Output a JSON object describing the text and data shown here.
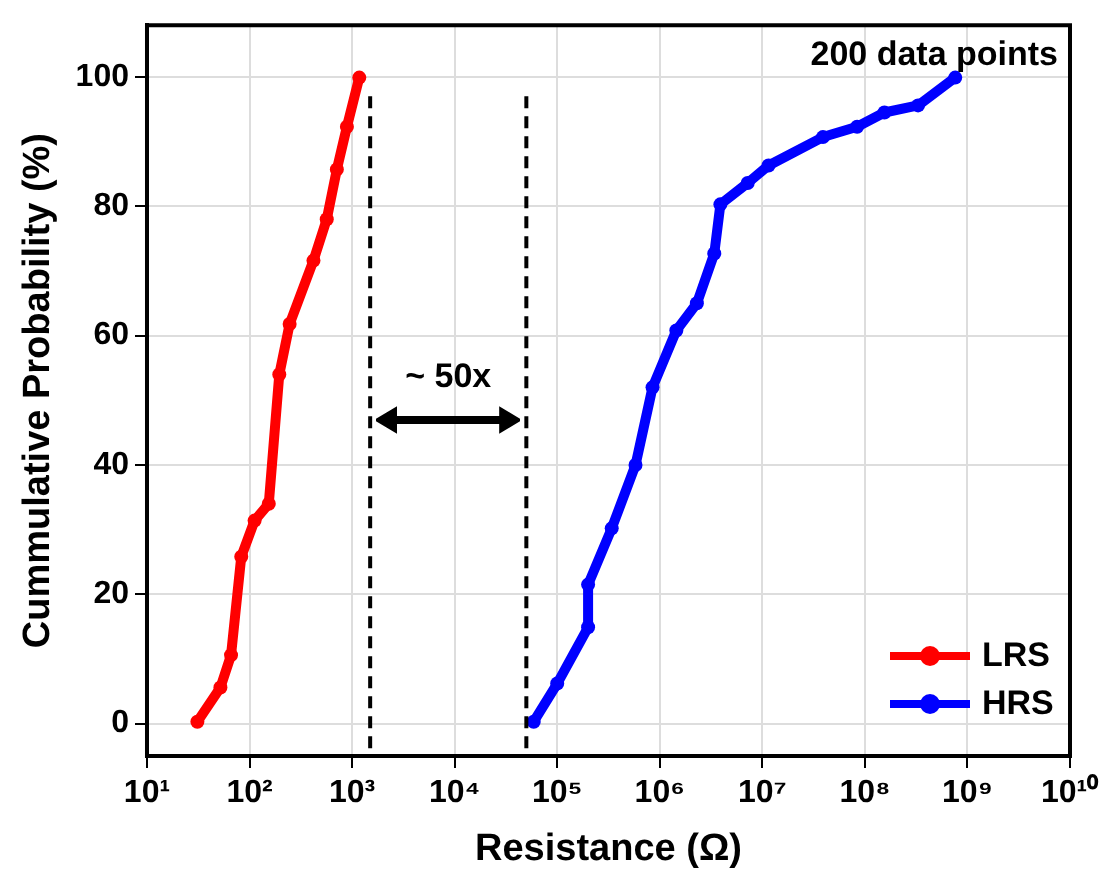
{
  "chart_data": {
    "type": "line",
    "xlabel": "Resistance (Ω)",
    "ylabel": "Cummulative Probability (%)",
    "log": "x",
    "xlim": [
      10,
      10000000000
    ],
    "ylim": [
      -5,
      108
    ],
    "xticks": [
      {
        "value": 10,
        "label": "10¹"
      },
      {
        "value": 100,
        "label": "10²"
      },
      {
        "value": 1000,
        "label": "10³"
      },
      {
        "value": 10000,
        "label": "10⁴"
      },
      {
        "value": 100000,
        "label": "10⁵"
      },
      {
        "value": 1000000,
        "label": "10⁶"
      },
      {
        "value": 10000000,
        "label": "10⁷"
      },
      {
        "value": 100000000,
        "label": "10⁸"
      },
      {
        "value": 1000000000,
        "label": "10⁹"
      },
      {
        "value": 10000000000,
        "label": "10¹⁰"
      }
    ],
    "yticks": [
      0,
      20,
      40,
      60,
      80,
      100
    ],
    "grid": true,
    "legend": "bottom right",
    "marker": "circle",
    "line_style": "solid",
    "series": [
      {
        "name": "LRS",
        "color": "#ff0000",
        "x": [
          31,
          52,
          66,
          83,
          112,
          154,
          195,
          246,
          420,
          566,
          710,
          890,
          1175
        ],
        "values": [
          0.3,
          5.6,
          10.6,
          25.8,
          31.4,
          34,
          54,
          61.8,
          71.6,
          78,
          85.7,
          92.3,
          99.9
        ]
      },
      {
        "name": "HRS",
        "color": "#0000ff",
        "x": [
          59000,
          100000,
          200000,
          200000,
          340000,
          580000,
          850000,
          1450000,
          2300000,
          3400000,
          3900000,
          7200000,
          11500000,
          39000000,
          84000000,
          155000000,
          330000000,
          760000000
        ],
        "values": [
          0.3,
          6.2,
          14.9,
          21.5,
          30.2,
          40,
          52,
          60.8,
          65,
          72.7,
          80.3,
          83.6,
          86.3,
          90.7,
          92.3,
          94.5,
          95.6,
          99.9
        ]
      }
    ],
    "ref_lines": [
      {
        "axis": "x",
        "value": 1500,
        "color": "#000000",
        "line_style": "dashed"
      },
      {
        "axis": "x",
        "value": 50000,
        "color": "#000000",
        "line_style": "dashed"
      }
    ],
    "annotations": [
      "200 data points",
      "~ 50x"
    ]
  }
}
